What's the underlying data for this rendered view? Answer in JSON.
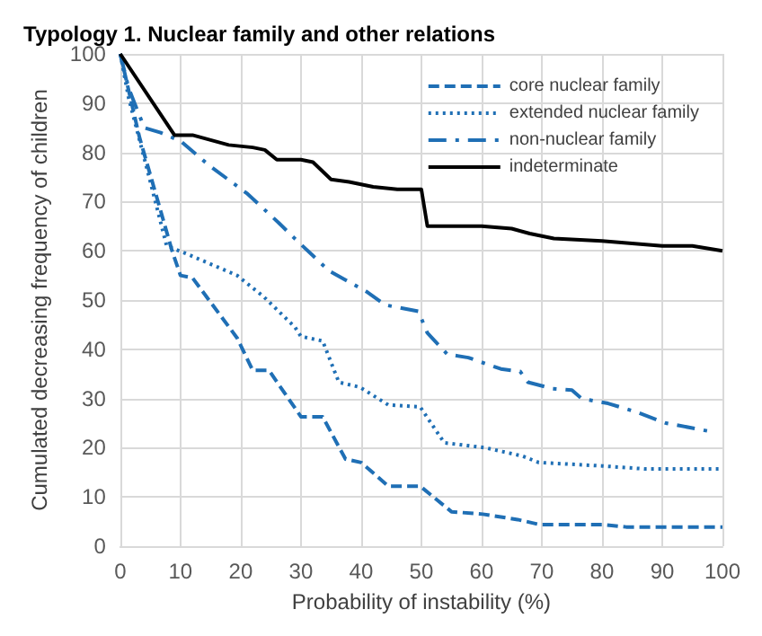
{
  "chart_data": {
    "type": "line",
    "title": "Typology 1. Nuclear family and other relations",
    "xlabel": "Probability of instability (%)",
    "ylabel": "Cumulated decreasing frequency of children",
    "xlim": [
      0,
      100
    ],
    "xticks": [
      0,
      10,
      20,
      30,
      40,
      50,
      60,
      70,
      80,
      90,
      100
    ],
    "ylim": [
      0,
      100
    ],
    "yticks": [
      0,
      10,
      20,
      30,
      40,
      50,
      60,
      70,
      80,
      90,
      100
    ],
    "grid": true,
    "legend": "top right",
    "marker": "none",
    "series": [
      {
        "name": "core nuclear family",
        "color": "#1f6fb5",
        "line_style": "dashed",
        "x": [
          0,
          3.2,
          6.5,
          8.6,
          10,
          12,
          19.4,
          22,
          24.7,
          30,
          33.6,
          37.4,
          40,
          44.5,
          49.8,
          55,
          60.2,
          66,
          69.6,
          73,
          80,
          84,
          100
        ],
        "values": [
          100,
          83,
          69,
          60,
          55,
          54.5,
          42.3,
          35.7,
          35.7,
          26.3,
          26.3,
          17.7,
          17,
          12.2,
          12.2,
          7,
          6.5,
          5.4,
          4.4,
          4.4,
          4.4,
          3.9,
          3.9
        ]
      },
      {
        "name": "extended nuclear family",
        "color": "#1f6fb5",
        "line_style": "dotted",
        "x": [
          0,
          1.4,
          5,
          7.7,
          11.2,
          19.4,
          23.8,
          29,
          30,
          33.6,
          36.3,
          39.8,
          44.5,
          49.8,
          51.6,
          53.8,
          60.6,
          66.8,
          69.5,
          80,
          87,
          100
        ],
        "values": [
          100,
          91,
          74,
          61,
          59.3,
          55,
          50.7,
          44.5,
          42.6,
          41.7,
          33.3,
          32.3,
          28.7,
          28.3,
          25,
          21,
          20,
          18.3,
          17,
          16.3,
          15.7,
          15.7
        ]
      },
      {
        "name": "non-nuclear family",
        "color": "#1f6fb5",
        "line_style": "dashdot",
        "x": [
          0,
          1.4,
          4,
          6.7,
          10,
          14.8,
          21,
          26.3,
          28.8,
          34.6,
          40.9,
          44,
          49.5,
          51,
          54.3,
          57.8,
          63.2,
          66.4,
          67.7,
          71.8,
          75,
          76.6,
          81,
          85.6,
          90.6,
          95,
          98
        ],
        "values": [
          100,
          93,
          85,
          84,
          82.3,
          77.3,
          71.7,
          65.7,
          62.7,
          56,
          51.7,
          49,
          47.7,
          43.3,
          39,
          38.3,
          36,
          35.5,
          33.3,
          32,
          31.7,
          30,
          29,
          27.3,
          25,
          24,
          23.3
        ]
      },
      {
        "name": "indeterminate",
        "color": "#000000",
        "line_style": "solid",
        "x": [
          0,
          9,
          12,
          15,
          18,
          22,
          24,
          26,
          30,
          32,
          35,
          38,
          42,
          46,
          50,
          51,
          60,
          65,
          68,
          72,
          80,
          90,
          95,
          100
        ],
        "values": [
          100,
          83.5,
          83.5,
          82.5,
          81.5,
          81,
          80.5,
          78.5,
          78.5,
          78,
          74.5,
          74,
          73,
          72.5,
          72.5,
          65,
          65,
          64.5,
          63.5,
          62.5,
          62,
          61,
          61,
          60
        ]
      }
    ]
  }
}
